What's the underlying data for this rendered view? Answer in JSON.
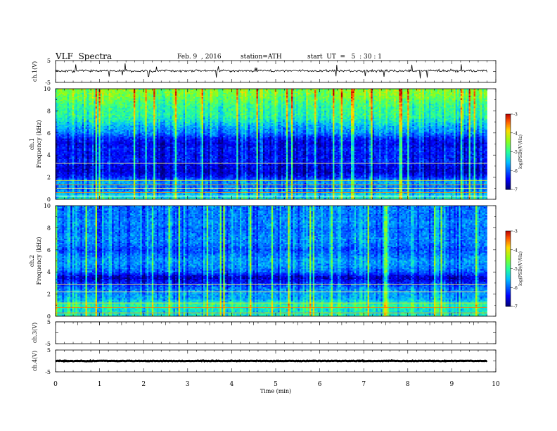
{
  "header": {
    "title": "VLF  Spectra",
    "date": "Feb. 9  , 2016",
    "station": "station=ATH",
    "start": "start  UT  =   5  : 30 : 1"
  },
  "chart_data": [
    {
      "type": "line",
      "panel": "ch1-waveform",
      "ylabel": "ch.1(V)",
      "ylim": [
        -5,
        5
      ],
      "yticks": [
        "5",
        "-5"
      ],
      "xlim": [
        0,
        10
      ],
      "data_end_min": 9.8,
      "baseline_v": 0.3
    },
    {
      "type": "heatmap",
      "panel": "ch1-spectrogram",
      "ylabel_lines": [
        "ch.1",
        "Frequency  (kHz)"
      ],
      "ylim": [
        0,
        10
      ],
      "yticks": [
        "0",
        "2",
        "4",
        "6",
        "8",
        "10"
      ],
      "xlim": [
        0,
        10
      ],
      "data_end_min": 9.8,
      "colorbar": {
        "label": "log(PSD)(V²/Hz)",
        "range": [
          -7,
          -3
        ],
        "ticks": [
          "-3",
          "-4",
          "-5",
          "-6",
          "-7"
        ]
      },
      "bands_khz_log10psd": [
        [
          0.0,
          -5.2
        ],
        [
          0.5,
          -5.5
        ],
        [
          1.0,
          -6.0
        ],
        [
          1.5,
          -5.6
        ],
        [
          2.0,
          -6.3
        ],
        [
          2.5,
          -6.6
        ],
        [
          3.0,
          -6.5
        ],
        [
          3.5,
          -6.3
        ],
        [
          4.0,
          -6.4
        ],
        [
          4.5,
          -6.3
        ],
        [
          5.0,
          -6.5
        ],
        [
          5.5,
          -6.3
        ],
        [
          6.0,
          -5.8
        ],
        [
          6.5,
          -5.6
        ],
        [
          7.0,
          -5.3
        ],
        [
          7.5,
          -5.0
        ],
        [
          8.0,
          -5.0
        ],
        [
          8.5,
          -4.9
        ],
        [
          9.0,
          -4.7
        ],
        [
          9.5,
          -4.5
        ]
      ],
      "ucolor": "#ffffff"
    },
    {
      "type": "heatmap",
      "panel": "ch2-spectrogram",
      "ylabel_lines": [
        "ch.2",
        "Frequency  (kHz)"
      ],
      "ylim": [
        0,
        10
      ],
      "yticks": [
        "0",
        "2",
        "4",
        "6",
        "8",
        "10"
      ],
      "xlim": [
        0,
        10
      ],
      "data_end_min": 9.8,
      "colorbar": {
        "label": "log(PSD)(V²/Hz)",
        "range": [
          -7,
          -3
        ],
        "ticks": [
          "-3",
          "-4",
          "-5",
          "-6",
          "-7"
        ]
      },
      "bands_khz_log10psd": [
        [
          0.0,
          -5.2
        ],
        [
          0.5,
          -5.3
        ],
        [
          1.0,
          -5.0
        ],
        [
          1.5,
          -5.6
        ],
        [
          2.0,
          -5.7
        ],
        [
          2.5,
          -5.9
        ],
        [
          3.0,
          -6.3
        ],
        [
          3.5,
          -6.7
        ],
        [
          4.0,
          -6.0
        ],
        [
          4.5,
          -5.8
        ],
        [
          5.0,
          -5.7
        ],
        [
          5.5,
          -5.9
        ],
        [
          6.0,
          -6.1
        ],
        [
          6.5,
          -5.9
        ],
        [
          7.0,
          -5.8
        ],
        [
          7.5,
          -5.9
        ],
        [
          8.0,
          -5.9
        ],
        [
          8.5,
          -5.8
        ],
        [
          9.0,
          -5.9
        ],
        [
          9.5,
          -5.9
        ]
      ]
    },
    {
      "type": "line",
      "panel": "ch3-waveform",
      "ylabel": "ch.3(V)",
      "ylim": [
        -5,
        5
      ],
      "yticks": [
        "5",
        "-5"
      ],
      "xlim": [
        0,
        10
      ],
      "data_end_min": 9.8,
      "baseline_v": 5
    },
    {
      "type": "line",
      "panel": "ch4-waveform",
      "ylabel": "ch.4(V)",
      "ylim": [
        -5,
        5
      ],
      "yticks": [
        "5",
        "-5"
      ],
      "xlim": [
        0,
        10
      ],
      "data_end_min": 9.8,
      "baseline_v": 0
    }
  ],
  "xaxis": {
    "label": "Time  (min)",
    "ticks": [
      "0",
      "1",
      "2",
      "3",
      "4",
      "5",
      "6",
      "7",
      "8",
      "9",
      "10"
    ]
  },
  "colors": {
    "axis": "#000000",
    "trace": "#000000",
    "grid_ticks": "#000000"
  }
}
